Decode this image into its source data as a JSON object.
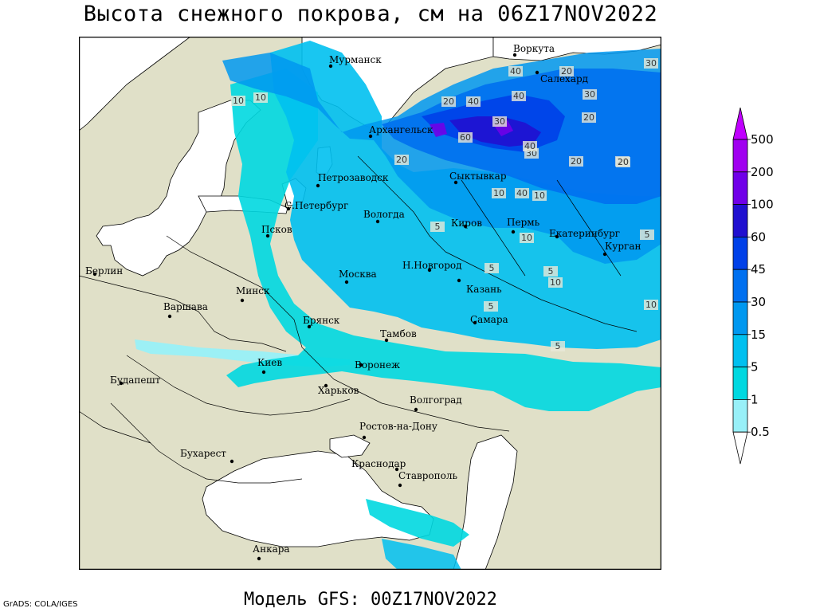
{
  "title": "Высота снежного покрова, см на 06Z17NOV2022",
  "subtitle": "Модель GFS: 00Z17NOV2022",
  "credit": "GrADS: COLA/IGES",
  "colors": {
    "land": "#e0e0c8",
    "water": "#ffffff",
    "snow_0_5": "#98f0f8",
    "snow_1": "#00d8e0",
    "snow_5": "#00c0f0",
    "snow_15": "#0098f0",
    "snow_30": "#0070f0",
    "snow_45": "#0040e8",
    "snow_60": "#2010d0",
    "snow_100": "#7000e8",
    "snow_200": "#a000f0",
    "snow_500": "#c000ff"
  },
  "cities": [
    {
      "name": "Мурманск"
    },
    {
      "name": "Воркута"
    },
    {
      "name": "Салехард"
    },
    {
      "name": "Архангельск"
    },
    {
      "name": "Сыктывкар"
    },
    {
      "name": "Петрозаводск"
    },
    {
      "name": "С.Петербург"
    },
    {
      "name": "Вологда"
    },
    {
      "name": "Киров"
    },
    {
      "name": "Пермь"
    },
    {
      "name": "Екатеринбург"
    },
    {
      "name": "Курган"
    },
    {
      "name": "Псков"
    },
    {
      "name": "Берлин"
    },
    {
      "name": "Н.Новгород"
    },
    {
      "name": "Москва"
    },
    {
      "name": "Казань"
    },
    {
      "name": "Варшава"
    },
    {
      "name": "Минск"
    },
    {
      "name": "Брянск"
    },
    {
      "name": "Самара"
    },
    {
      "name": "Тамбов"
    },
    {
      "name": "Киев"
    },
    {
      "name": "Воронеж"
    },
    {
      "name": "Будапешт"
    },
    {
      "name": "Харьков"
    },
    {
      "name": "Волгоград"
    },
    {
      "name": "Ростов-на-Дону"
    },
    {
      "name": "Бухарест"
    },
    {
      "name": "Краснодар"
    },
    {
      "name": "Ставрополь"
    },
    {
      "name": "Анкара"
    }
  ],
  "contour_labels": [
    "10",
    "10",
    "30",
    "40",
    "20",
    "20",
    "40",
    "60",
    "20",
    "30",
    "20",
    "30",
    "20",
    "40",
    "10",
    "20",
    "40",
    "10",
    "40",
    "10",
    "5",
    "5",
    "10",
    "5",
    "5",
    "5",
    "20",
    "30",
    "5",
    "10"
  ],
  "legend": {
    "levels": [
      "500",
      "200",
      "100",
      "60",
      "45",
      "30",
      "15",
      "5",
      "1",
      "0.5"
    ]
  }
}
